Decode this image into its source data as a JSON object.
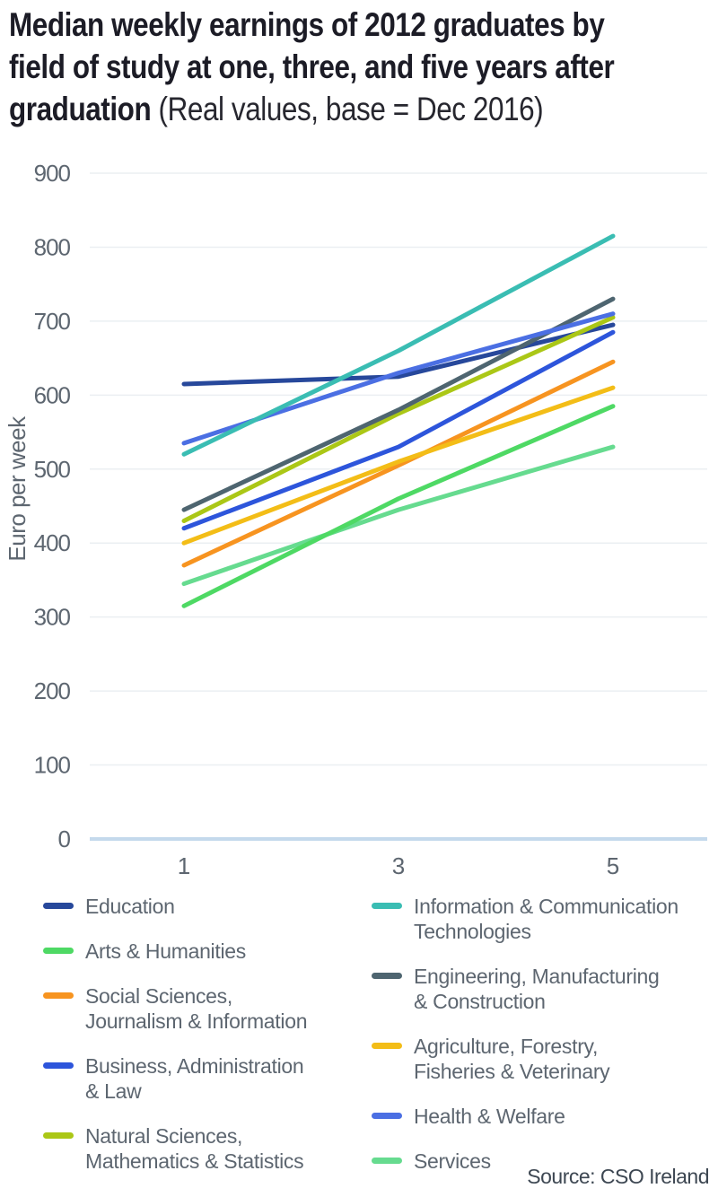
{
  "title": {
    "line1": "Median weekly earnings of 2012 graduates by",
    "line2": "field of study at one, three, and five years after",
    "line3_bold": "graduation",
    "line3_suffix": " (Real values, base = Dec 2016)"
  },
  "source": "Source: CSO Ireland",
  "colors": {
    "title_text": "#1c1c26",
    "axis_text": "#5d6670",
    "gridline": "#ebeff2",
    "baseline": "#c4d9ec",
    "legend_text": "#5d6670",
    "source_text": "#3d4752"
  },
  "chart_data": {
    "type": "line",
    "x": [
      1,
      3,
      5
    ],
    "x_tick_labels": [
      "1",
      "3",
      "5"
    ],
    "y_ticks": [
      900,
      800,
      700,
      600,
      500,
      400,
      300,
      200,
      100,
      0
    ],
    "ylim": [
      0,
      900
    ],
    "ylabel": "Euro per week",
    "xlabel": "",
    "grid": true,
    "legend_position": "bottom",
    "series": [
      {
        "name": "Education",
        "color": "#27489b",
        "values": [
          615,
          625,
          695
        ]
      },
      {
        "name": "Arts & Humanities",
        "color": "#4ed964",
        "values": [
          315,
          460,
          585
        ]
      },
      {
        "name": "Social Sciences,\nJournalism & Information",
        "color": "#f79420",
        "values": [
          370,
          505,
          645
        ]
      },
      {
        "name": "Business, Administration\n& Law",
        "color": "#2d55db",
        "values": [
          420,
          530,
          685
        ]
      },
      {
        "name": "Natural Sciences,\nMathematics & Statistics",
        "color": "#abc716",
        "values": [
          430,
          575,
          705
        ]
      },
      {
        "name": "Information & Communication\nTechnologies",
        "color": "#3abdb3",
        "values": [
          520,
          660,
          815
        ]
      },
      {
        "name": "Engineering, Manufacturing\n& Construction",
        "color": "#4e6570",
        "values": [
          445,
          580,
          730
        ]
      },
      {
        "name": "Agriculture, Forestry,\nFisheries & Veterinary",
        "color": "#f3bd17",
        "values": [
          400,
          510,
          610
        ]
      },
      {
        "name": "Health & Welfare",
        "color": "#4b6fe3",
        "values": [
          535,
          630,
          710
        ]
      },
      {
        "name": "Services",
        "color": "#66db8f",
        "values": [
          345,
          445,
          530
        ]
      }
    ],
    "legend_columns": {
      "left": [
        0,
        1,
        2,
        3,
        4
      ],
      "right": [
        5,
        6,
        7,
        8,
        9
      ]
    },
    "z_order": [
      0,
      9,
      1,
      2,
      7,
      3,
      4,
      6,
      8,
      5
    ]
  }
}
